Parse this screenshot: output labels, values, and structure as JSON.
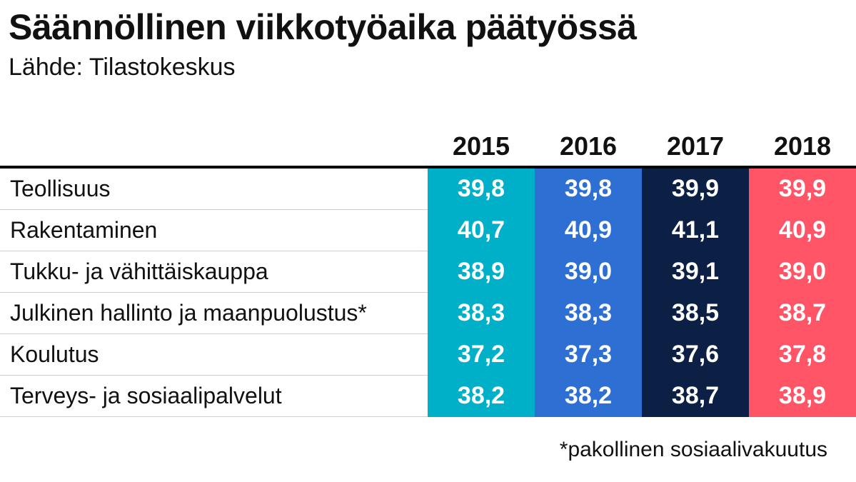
{
  "title": "Säännöllinen viikkotyöaika päätyössä",
  "subtitle": "Lähde: Tilastokeskus",
  "footnote": "*pakollinen sosiaalivakuutus",
  "colors": {
    "2015": "#00b0c9",
    "2016": "#2e6fd3",
    "2017": "#0c1f45",
    "2018": "#ff5566"
  },
  "chart_data": {
    "type": "table",
    "title": "Säännöllinen viikkotyöaika päätyössä",
    "columns": [
      "2015",
      "2016",
      "2017",
      "2018"
    ],
    "rows": [
      {
        "label": "Teollisuus",
        "values": [
          "39,8",
          "39,8",
          "39,9",
          "39,9"
        ]
      },
      {
        "label": "Rakentaminen",
        "values": [
          "40,7",
          "40,9",
          "41,1",
          "40,9"
        ]
      },
      {
        "label": "Tukku- ja vähittäiskauppa",
        "values": [
          "38,9",
          "39,0",
          "39,1",
          "39,0"
        ]
      },
      {
        "label": "Julkinen hallinto ja maanpuolustus*",
        "values": [
          "38,3",
          "38,3",
          "38,5",
          "38,7"
        ]
      },
      {
        "label": "Koulutus",
        "values": [
          "37,2",
          "37,3",
          "37,6",
          "37,8"
        ]
      },
      {
        "label": "Terveys- ja sosiaalipalvelut",
        "values": [
          "38,2",
          "38,2",
          "38,7",
          "38,9"
        ]
      }
    ]
  }
}
